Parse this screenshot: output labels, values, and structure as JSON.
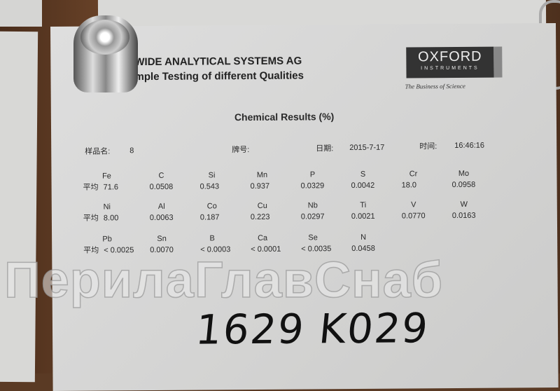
{
  "document": {
    "company": "WIDE ANALYTICAL SYSTEMS AG",
    "subtitle": "mple Testing of different Qualities",
    "title": "Chemical Results   (%)",
    "logo": {
      "name": "OXFORD",
      "sub": "INSTRUMENTS",
      "tagline": "The Business of Science"
    },
    "sample_label": "样品名:",
    "sample_value": "8",
    "grade_label": "牌号:",
    "date_label": "日期:",
    "date_value": "2015-7-17",
    "time_label": "时间:",
    "time_value": "16:46:16",
    "avg_label": "平均",
    "rows": [
      [
        {
          "el": "Fe",
          "val": "71.6"
        },
        {
          "el": "C",
          "val": "0.0508"
        },
        {
          "el": "Si",
          "val": "0.543"
        },
        {
          "el": "Mn",
          "val": "0.937"
        },
        {
          "el": "P",
          "val": "0.0329"
        },
        {
          "el": "S",
          "val": "0.0042"
        },
        {
          "el": "Cr",
          "val": "18.0"
        },
        {
          "el": "Mo",
          "val": "0.0958"
        }
      ],
      [
        {
          "el": "Ni",
          "val": "8.00"
        },
        {
          "el": "Al",
          "val": "0.0063"
        },
        {
          "el": "Co",
          "val": "0.187"
        },
        {
          "el": "Cu",
          "val": "0.223"
        },
        {
          "el": "Nb",
          "val": "0.0297"
        },
        {
          "el": "Ti",
          "val": "0.0021"
        },
        {
          "el": "V",
          "val": "0.0770"
        },
        {
          "el": "W",
          "val": "0.0163"
        }
      ],
      [
        {
          "el": "Pb",
          "val": "< 0.0025"
        },
        {
          "el": "Sn",
          "val": "0.0070"
        },
        {
          "el": "B",
          "val": "< 0.0003"
        },
        {
          "el": "Ca",
          "val": "< 0.0001"
        },
        {
          "el": "Se",
          "val": "< 0.0035"
        },
        {
          "el": "N",
          "val": "0.0458"
        }
      ]
    ],
    "handwritten": "1629 K029"
  },
  "watermark": "ПерилаГлавСнаб"
}
